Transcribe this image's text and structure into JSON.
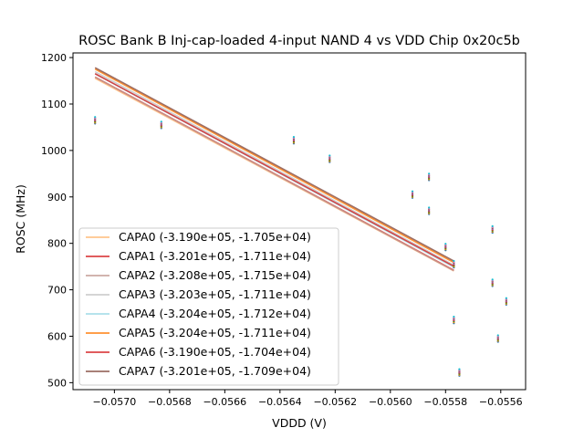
{
  "chart_data": {
    "type": "scatter",
    "title": "ROSC Bank B Inj-cap-loaded 4-input NAND 4 vs VDD Chip 0x20c5b",
    "xlabel": "VDDD (V)",
    "ylabel": "ROSC (MHz)",
    "xlim": [
      -0.05715,
      -0.05551
    ],
    "ylim": [
      485,
      1210
    ],
    "x_ticks": [
      -0.057,
      -0.0568,
      -0.0566,
      -0.0564,
      -0.0562,
      -0.056,
      -0.0558,
      -0.0556
    ],
    "x_tick_labels": [
      "−0.0570",
      "−0.0568",
      "−0.0566",
      "−0.0564",
      "−0.0562",
      "−0.0560",
      "−0.0558",
      "−0.0556"
    ],
    "y_ticks": [
      500,
      600,
      700,
      800,
      900,
      1000,
      1100,
      1200
    ],
    "y_tick_labels": [
      "500",
      "600",
      "700",
      "800",
      "900",
      "1000",
      "1100",
      "1200"
    ],
    "legend_position": "lower-left",
    "grid": false,
    "fit_x_range": [
      -0.05707,
      -0.05577
    ],
    "series": [
      {
        "name": "CAPA0 (-3.190e+05, -1.705e+04)",
        "color": "#ffbb78",
        "slope": -319000,
        "intercept": -17050
      },
      {
        "name": "CAPA1 (-3.201e+05, -1.711e+04)",
        "color": "#d62728",
        "slope": -320100,
        "intercept": -17110
      },
      {
        "name": "CAPA2 (-3.208e+05, -1.715e+04)",
        "color": "#c49c94",
        "slope": -320800,
        "intercept": -17150
      },
      {
        "name": "CAPA3 (-3.203e+05, -1.711e+04)",
        "color": "#c7c7c7",
        "slope": -320300,
        "intercept": -17110
      },
      {
        "name": "CAPA4 (-3.204e+05, -1.712e+04)",
        "color": "#9edae5",
        "slope": -320400,
        "intercept": -17120
      },
      {
        "name": "CAPA5 (-3.204e+05, -1.711e+04)",
        "color": "#ff7f0e",
        "slope": -320400,
        "intercept": -17110
      },
      {
        "name": "CAPA6 (-3.190e+05, -1.704e+04)",
        "color": "#d62728",
        "slope": -319000,
        "intercept": -17040
      },
      {
        "name": "CAPA7 (-3.201e+05, -1.709e+04)",
        "color": "#8c564b",
        "slope": -320100,
        "intercept": -17090
      }
    ],
    "scatter_x": [
      -0.05707,
      -0.05683,
      -0.05635,
      -0.05622,
      -0.05592,
      -0.05586,
      -0.05586,
      -0.0558,
      -0.05577,
      -0.05577,
      -0.05575,
      -0.05563,
      -0.05563,
      -0.05561,
      -0.05558
    ],
    "scatter_y": [
      1065,
      1055,
      1022,
      982,
      905,
      943,
      870,
      792,
      635,
      755,
      522,
      715,
      830,
      595,
      675
    ],
    "scatter_colors": [
      "#1f77b4",
      "#ff7f0e",
      "#2ca02c",
      "#d62728",
      "#9467bd",
      "#8c564b",
      "#e377c2",
      "#17becf"
    ],
    "scatter_spread": 4
  }
}
